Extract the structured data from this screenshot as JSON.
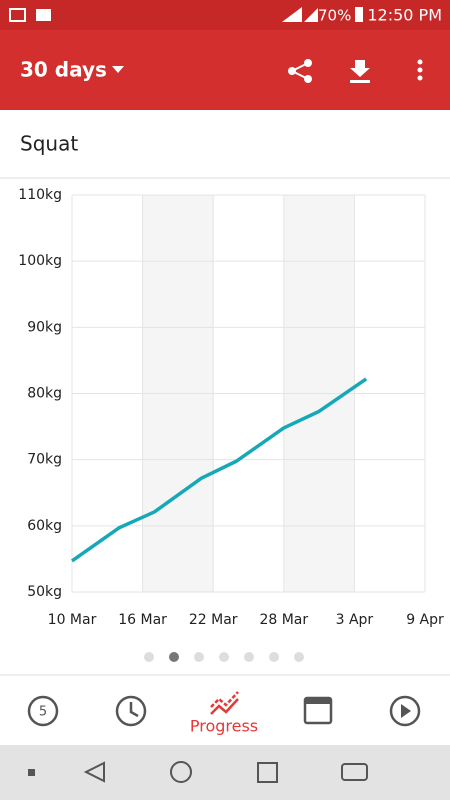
{
  "status_bar": {
    "battery": "70%",
    "time": "12:50 PM"
  },
  "app_bar": {
    "period": "30 days"
  },
  "card": {
    "title": "Squat"
  },
  "chart_data": {
    "type": "line",
    "x": [
      "10 Mar",
      "14 Mar",
      "17 Mar",
      "21 Mar",
      "24 Mar",
      "28 Mar",
      "31 Mar",
      "4 Apr"
    ],
    "series": [
      {
        "color": "#17a8b8",
        "values": [
          54.7,
          59.7,
          62.1,
          67.2,
          69.8,
          74.8,
          77.3,
          82.2
        ]
      }
    ],
    "xlim": [
      "10 Mar",
      "9 Apr"
    ],
    "xticks": [
      "10 Mar",
      "16 Mar",
      "22 Mar",
      "28 Mar",
      "3 Apr",
      "9 Apr"
    ],
    "ylim": [
      50,
      110
    ],
    "yticks": [
      {
        "value": 50,
        "label": "50kg"
      },
      {
        "value": 60,
        "label": "60kg"
      },
      {
        "value": 70,
        "label": "70kg"
      },
      {
        "value": 80,
        "label": "80kg"
      },
      {
        "value": 90,
        "label": "90kg"
      },
      {
        "value": 100,
        "label": "100kg"
      },
      {
        "value": 110,
        "label": "110kg"
      }
    ],
    "grid": true
  },
  "bottom_nav": {
    "badge": "5",
    "active": "Progress"
  }
}
